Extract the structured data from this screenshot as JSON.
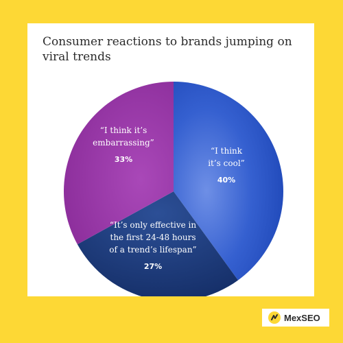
{
  "chart_data": {
    "type": "pie",
    "title": "Consumer reactions to brands jumping on viral trends",
    "slices": [
      {
        "label": "“I think it’s cool”",
        "value": 40,
        "display": "40%",
        "color": "#2b55c9"
      },
      {
        "label": "“It’s only effective in the first 24-48 hours of a trend’s lifespan”",
        "value": 27,
        "display": "27%",
        "color": "#1b3a7a"
      },
      {
        "label": "“I think it’s embarrassing”",
        "value": 33,
        "display": "33%",
        "color": "#9a36a8"
      }
    ]
  },
  "brand": {
    "name": "MexSEO",
    "icon": "mexseo-logo-icon",
    "accent": "#fdd835"
  }
}
